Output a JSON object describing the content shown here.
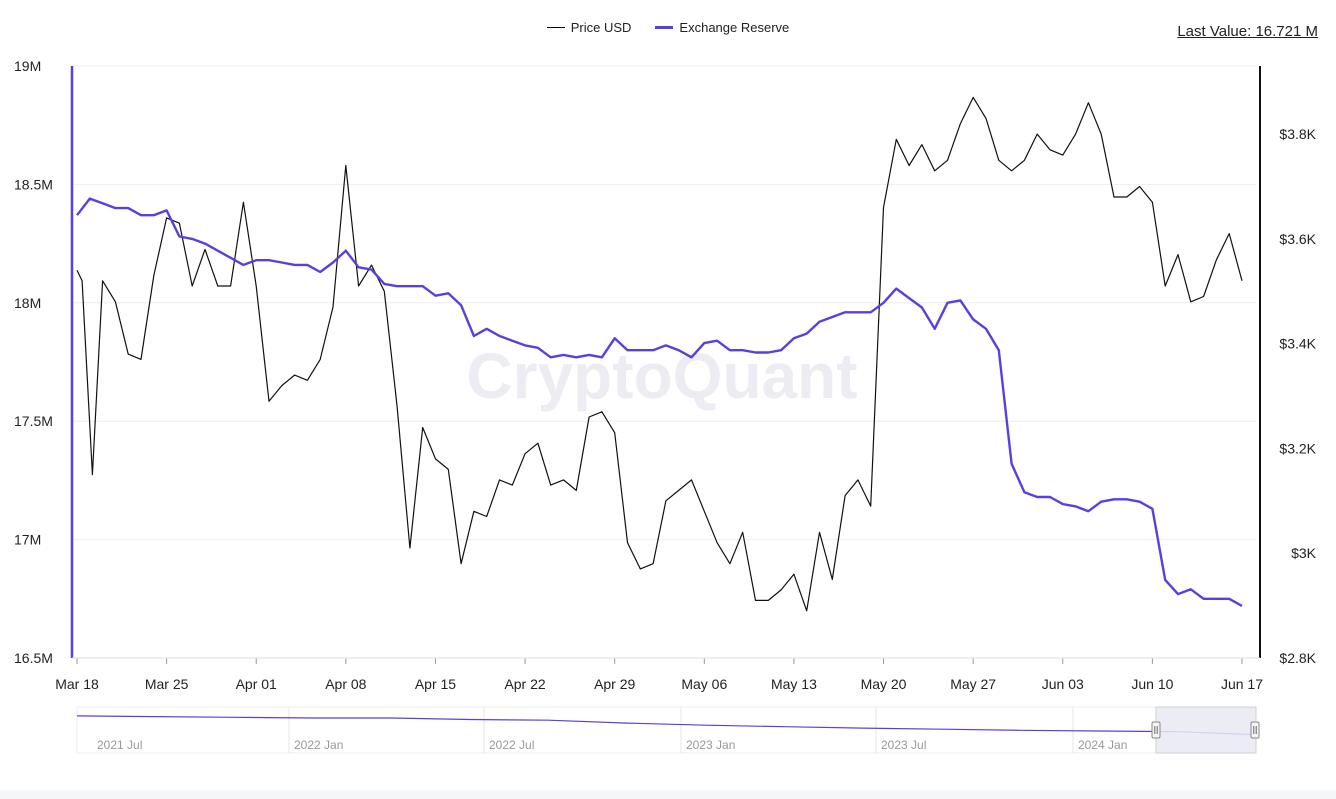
{
  "legend": {
    "price_label": "Price USD",
    "reserve_label": "Exchange Reserve"
  },
  "last_value": "Last Value: 16.721 M",
  "watermark": "CryptoQuant",
  "colors": {
    "price": "#111111",
    "reserve": "#5a3fe0",
    "grid": "#eeeeee",
    "axis": "#222222",
    "navigator_fill": "#e9eaf2"
  },
  "chart_data": {
    "type": "line",
    "title": "",
    "legend_position": "top-center",
    "grid": true,
    "x_range": [
      "Mar 18",
      "Jun 17"
    ],
    "x_ticks": [
      "Mar 18",
      "Mar 25",
      "Apr 01",
      "Apr 08",
      "Apr 15",
      "Apr 22",
      "Apr 29",
      "May 06",
      "May 13",
      "May 20",
      "May 27",
      "Jun 03",
      "Jun 10",
      "Jun 17"
    ],
    "y_left": {
      "label": "",
      "ticks": [
        "16.5M",
        "17M",
        "17.5M",
        "18M",
        "18.5M",
        "19M"
      ],
      "range": [
        16.5,
        19.0
      ],
      "unit": "M"
    },
    "y_right": {
      "label": "",
      "ticks": [
        "$2.8K",
        "$3K",
        "$3.2K",
        "$3.4K",
        "$3.6K",
        "$3.8K"
      ],
      "range": [
        2.8,
        3.93
      ],
      "unit": "K USD"
    },
    "series": [
      {
        "name": "Exchange Reserve",
        "axis": "left",
        "values": [
          [
            0,
            18.37
          ],
          [
            1,
            18.44
          ],
          [
            2,
            18.42
          ],
          [
            3,
            18.4
          ],
          [
            4,
            18.4
          ],
          [
            5,
            18.37
          ],
          [
            6,
            18.37
          ],
          [
            7,
            18.39
          ],
          [
            8,
            18.28
          ],
          [
            9,
            18.27
          ],
          [
            10,
            18.25
          ],
          [
            11,
            18.22
          ],
          [
            12,
            18.19
          ],
          [
            13,
            18.16
          ],
          [
            14,
            18.18
          ],
          [
            15,
            18.18
          ],
          [
            16,
            18.17
          ],
          [
            17,
            18.16
          ],
          [
            18,
            18.16
          ],
          [
            19,
            18.13
          ],
          [
            20,
            18.17
          ],
          [
            21,
            18.22
          ],
          [
            22,
            18.15
          ],
          [
            23,
            18.14
          ],
          [
            24,
            18.08
          ],
          [
            25,
            18.07
          ],
          [
            26,
            18.07
          ],
          [
            27,
            18.07
          ],
          [
            28,
            18.03
          ],
          [
            29,
            18.04
          ],
          [
            30,
            17.99
          ],
          [
            31,
            17.86
          ],
          [
            32,
            17.89
          ],
          [
            33,
            17.86
          ],
          [
            34,
            17.84
          ],
          [
            35,
            17.82
          ],
          [
            36,
            17.81
          ],
          [
            37,
            17.77
          ],
          [
            38,
            17.78
          ],
          [
            39,
            17.77
          ],
          [
            40,
            17.78
          ],
          [
            41,
            17.77
          ],
          [
            42,
            17.85
          ],
          [
            43,
            17.8
          ],
          [
            44,
            17.8
          ],
          [
            45,
            17.8
          ],
          [
            46,
            17.82
          ],
          [
            47,
            17.8
          ],
          [
            48,
            17.77
          ],
          [
            49,
            17.83
          ],
          [
            50,
            17.84
          ],
          [
            51,
            17.8
          ],
          [
            52,
            17.8
          ],
          [
            53,
            17.79
          ],
          [
            54,
            17.79
          ],
          [
            55,
            17.8
          ],
          [
            56,
            17.85
          ],
          [
            57,
            17.87
          ],
          [
            58,
            17.92
          ],
          [
            59,
            17.94
          ],
          [
            60,
            17.96
          ],
          [
            61,
            17.96
          ],
          [
            62,
            17.96
          ],
          [
            63,
            18.0
          ],
          [
            64,
            18.06
          ],
          [
            65,
            18.02
          ],
          [
            66,
            17.98
          ],
          [
            67,
            17.89
          ],
          [
            68,
            18.0
          ],
          [
            69,
            18.01
          ],
          [
            70,
            17.93
          ],
          [
            71,
            17.89
          ],
          [
            72,
            17.8
          ],
          [
            73,
            17.32
          ],
          [
            74,
            17.2
          ],
          [
            75,
            17.18
          ],
          [
            76,
            17.18
          ],
          [
            77,
            17.15
          ],
          [
            78,
            17.14
          ],
          [
            79,
            17.12
          ],
          [
            80,
            17.16
          ],
          [
            81,
            17.17
          ],
          [
            82,
            17.17
          ],
          [
            83,
            17.16
          ],
          [
            84,
            17.13
          ],
          [
            85,
            16.83
          ],
          [
            86,
            16.77
          ],
          [
            87,
            16.79
          ],
          [
            88,
            16.75
          ],
          [
            89,
            16.75
          ],
          [
            90,
            16.75
          ],
          [
            91,
            16.72
          ]
        ]
      },
      {
        "name": "Price USD",
        "axis": "right",
        "values": [
          [
            0,
            3.54
          ],
          [
            0.4,
            3.52
          ],
          [
            1.2,
            3.15
          ],
          [
            2,
            3.52
          ],
          [
            3,
            3.48
          ],
          [
            4,
            3.38
          ],
          [
            5,
            3.37
          ],
          [
            6,
            3.53
          ],
          [
            7,
            3.64
          ],
          [
            8,
            3.63
          ],
          [
            9,
            3.51
          ],
          [
            10,
            3.58
          ],
          [
            11,
            3.51
          ],
          [
            12,
            3.51
          ],
          [
            13,
            3.67
          ],
          [
            14,
            3.51
          ],
          [
            15,
            3.29
          ],
          [
            16,
            3.32
          ],
          [
            17,
            3.34
          ],
          [
            18,
            3.33
          ],
          [
            19,
            3.37
          ],
          [
            20,
            3.47
          ],
          [
            21,
            3.74
          ],
          [
            22,
            3.51
          ],
          [
            23,
            3.55
          ],
          [
            24,
            3.5
          ],
          [
            25,
            3.28
          ],
          [
            26,
            3.01
          ],
          [
            27,
            3.24
          ],
          [
            28,
            3.18
          ],
          [
            29,
            3.16
          ],
          [
            30,
            2.98
          ],
          [
            31,
            3.08
          ],
          [
            32,
            3.07
          ],
          [
            33,
            3.14
          ],
          [
            34,
            3.13
          ],
          [
            35,
            3.19
          ],
          [
            36,
            3.21
          ],
          [
            37,
            3.13
          ],
          [
            38,
            3.14
          ],
          [
            39,
            3.12
          ],
          [
            40,
            3.26
          ],
          [
            41,
            3.27
          ],
          [
            42,
            3.23
          ],
          [
            43,
            3.02
          ],
          [
            44,
            2.97
          ],
          [
            45,
            2.98
          ],
          [
            46,
            3.1
          ],
          [
            47,
            3.12
          ],
          [
            48,
            3.14
          ],
          [
            49,
            3.08
          ],
          [
            50,
            3.02
          ],
          [
            51,
            2.98
          ],
          [
            52,
            3.04
          ],
          [
            53,
            2.91
          ],
          [
            54,
            2.91
          ],
          [
            55,
            2.93
          ],
          [
            56,
            2.96
          ],
          [
            57,
            2.89
          ],
          [
            58,
            3.04
          ],
          [
            59,
            2.95
          ],
          [
            60,
            3.11
          ],
          [
            61,
            3.14
          ],
          [
            62,
            3.09
          ],
          [
            63,
            3.66
          ],
          [
            64,
            3.79
          ],
          [
            65,
            3.74
          ],
          [
            66,
            3.78
          ],
          [
            67,
            3.73
          ],
          [
            68,
            3.75
          ],
          [
            69,
            3.82
          ],
          [
            70,
            3.87
          ],
          [
            71,
            3.83
          ],
          [
            72,
            3.75
          ],
          [
            73,
            3.73
          ],
          [
            74,
            3.75
          ],
          [
            75,
            3.8
          ],
          [
            76,
            3.77
          ],
          [
            77,
            3.76
          ],
          [
            78,
            3.8
          ],
          [
            79,
            3.86
          ],
          [
            80,
            3.8
          ],
          [
            81,
            3.68
          ],
          [
            82,
            3.68
          ],
          [
            83,
            3.7
          ],
          [
            84,
            3.67
          ],
          [
            85,
            3.51
          ],
          [
            86,
            3.57
          ],
          [
            87,
            3.48
          ],
          [
            88,
            3.49
          ],
          [
            89,
            3.56
          ],
          [
            90,
            3.61
          ],
          [
            91,
            3.52
          ]
        ]
      }
    ],
    "navigator": {
      "labels": [
        "2021 Jul",
        "2022 Jan",
        "2022 Jul",
        "2023 Jan",
        "2023 Jul",
        "2024 Jan"
      ],
      "series": [
        0.92,
        0.9,
        0.88,
        0.86,
        0.86,
        0.82,
        0.8,
        0.72,
        0.66,
        0.62,
        0.58,
        0.55,
        0.52,
        0.5,
        0.48,
        0.4
      ]
    }
  }
}
